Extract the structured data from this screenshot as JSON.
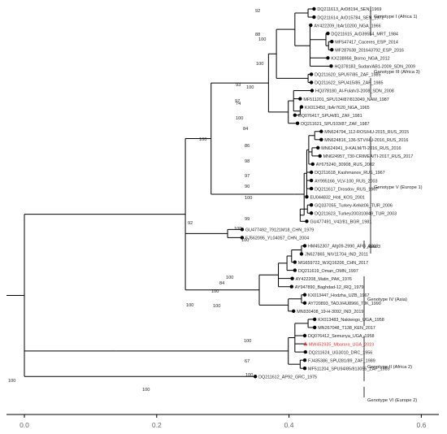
{
  "tips": [
    {
      "label": "DQ211613_ArD8194_SEN_1969",
      "highlight": false
    },
    {
      "label": "DQ211614_ArD15784_SEN_1972",
      "highlight": false
    },
    {
      "label": "AY422209_IbAr10200_NGA_1966",
      "highlight": false
    },
    {
      "label": "DQ211615_ArD39554_MRT_1984",
      "highlight": false
    },
    {
      "label": "MF547417_Caceres_ESP_2014",
      "highlight": false
    },
    {
      "label": "MF287638_201643792_ESP_2016",
      "highlight": false
    },
    {
      "label": "KX238956_Borno_NGA_2012",
      "highlight": false
    },
    {
      "label": "HQ378183_Sudan/AB1-2009_SDN_2009",
      "highlight": false
    },
    {
      "label": "DQ211620_SPU97/85_ZAF_1985",
      "highlight": false
    },
    {
      "label": "DQ211622_SPU415/85_ZAF_1985",
      "highlight": false
    },
    {
      "label": "HQ378180_Al-Fulah/3-2008_SDN_2008",
      "highlight": false
    },
    {
      "label": "MF511201_SPU134/87/813049_NAM_1987",
      "highlight": false
    },
    {
      "label": "KX013450_IbAr7620_NGA_1965",
      "highlight": false
    },
    {
      "label": "DQ076417_SPU4/81_ZAF_1981",
      "highlight": false
    },
    {
      "label": "DQ211621_SPU103/87_ZAF_1987",
      "highlight": false
    },
    {
      "label": "MN624794_112-ROS/HU-2015_RUS_2015",
      "highlight": false
    },
    {
      "label": "MN624816_136-STV/HU-2016_RUS_2016",
      "highlight": false
    },
    {
      "label": "MN624941_9-KALM/TI-2016_RUS_2016",
      "highlight": false
    },
    {
      "label": "MN624957_730-CRIMEA/TI-2017_RUS_2017",
      "highlight": false
    },
    {
      "label": "AY675240_30908_RUS_2002",
      "highlight": false
    },
    {
      "label": "DQ211618_Kashmanov_RUS_1967",
      "highlight": false
    },
    {
      "label": "AY995166_VLV-100_RUS_2003",
      "highlight": false
    },
    {
      "label": "DQ211617_Drosdov_RUS_1967",
      "highlight": false
    },
    {
      "label": "EU044832_Hoti_KOS_2001",
      "highlight": false
    },
    {
      "label": "GQ337055_Turkey-Kelkit06_TUR_2006",
      "highlight": false
    },
    {
      "label": "DQ211623_Turkey200310849_TUR_2003",
      "highlight": false
    },
    {
      "label": "GU477491_V42/81_BGR_1981",
      "highlight": false
    },
    {
      "label": "GU477492_79121M18_CHN_1979",
      "highlight": false
    },
    {
      "label": "FJ562095_YL04057_CHN_2004",
      "highlight": false
    },
    {
      "label": "HM452307_Afg09-2990_AFG_2009",
      "highlight": false
    },
    {
      "label": "JN627865_NIV11704_IND_2011",
      "highlight": false
    },
    {
      "label": "MG659722_WJQ16206_CHN_2017",
      "highlight": false
    },
    {
      "label": "DQ211619_Oman_OMN_1997",
      "highlight": false
    },
    {
      "label": "AY422208_Matin_PAK_1976",
      "highlight": false
    },
    {
      "label": "AY947890_Baghdad-12_IRQ_1979",
      "highlight": false
    },
    {
      "label": "KX013447_Hodzha_UZB_1967",
      "highlight": false
    },
    {
      "label": "AY720893_TADJ/HU8966_TJK_1990",
      "highlight": false
    },
    {
      "label": "MN930408_19-H-3092_IND_2019",
      "highlight": false
    },
    {
      "label": "KX013483_Nakiwogo_UGA_1958",
      "highlight": false
    },
    {
      "label": "MN267048_T138_KEN_2017",
      "highlight": false
    },
    {
      "label": "DQ076412_Semunya_UGA_1958",
      "highlight": false
    },
    {
      "label": "MW452935_Mbarara_UGA_2019",
      "highlight": true
    },
    {
      "label": "DQ211624_UG3010_DRC_1956",
      "highlight": false
    },
    {
      "label": "FJ435386_SPU281/89_ZAF_1989",
      "highlight": false
    },
    {
      "label": "MF511204_SPU94/85/813055_ZAF_1985",
      "highlight": false
    },
    {
      "label": "DQ211612_AP92_GRC_1975",
      "highlight": false
    }
  ],
  "nodes": [
    {
      "id": "n92",
      "support": "92",
      "x": 0.43,
      "children": [
        "t0",
        "t1"
      ]
    },
    {
      "id": "n88",
      "support": "88",
      "x": 0.457,
      "children": [
        "t3",
        "t4"
      ]
    },
    {
      "id": "n100b",
      "support": "100",
      "x": 0.461,
      "children": [
        "t4",
        "t5"
      ]
    },
    {
      "id": "n100a",
      "support": "100",
      "x": 0.433,
      "children": [
        "t2",
        "t3",
        "t6",
        "t7"
      ]
    },
    {
      "id": "n100c",
      "support": "100",
      "x": 0.43,
      "children": [
        "t8",
        "t9"
      ]
    },
    {
      "id": "n93",
      "support": "93",
      "x": 0.382,
      "children": [
        "t0",
        "t9"
      ]
    },
    {
      "id": "n74",
      "support": "74",
      "x": 0.418,
      "children": [
        "t12",
        "t13"
      ]
    },
    {
      "id": "n97",
      "support": "97",
      "x": 0.408,
      "children": [
        "t11",
        "t12"
      ]
    },
    {
      "id": "n100d",
      "support": "100",
      "x": 0.37,
      "children": [
        "t0",
        "t14"
      ]
    },
    {
      "id": "n84",
      "support": "84",
      "x": 0.44,
      "children": [
        "t15",
        "t16"
      ]
    },
    {
      "id": "n86",
      "support": "86",
      "x": 0.436,
      "children": [
        "t16",
        "t18"
      ]
    },
    {
      "id": "n98",
      "support": "98",
      "x": 0.437,
      "children": [
        "t19"
      ]
    },
    {
      "id": "n97b",
      "support": "97",
      "x": 0.431,
      "children": [
        "t15",
        "t20"
      ]
    },
    {
      "id": "n90",
      "support": "90",
      "x": 0.428,
      "children": [
        "t20",
        "t21"
      ]
    },
    {
      "id": "n100e",
      "support": "100",
      "x": 0.428,
      "children": [
        "t20",
        "t23"
      ]
    },
    {
      "id": "n99",
      "support": "99",
      "x": 0.429,
      "children": [
        "t24",
        "t25"
      ]
    },
    {
      "id": "n100f",
      "support": "100",
      "x": 0.418,
      "children": [
        "t24",
        "t26"
      ]
    },
    {
      "id": "n100g",
      "support": "100",
      "x": 0.283,
      "children": [
        "t15",
        "t26"
      ]
    },
    {
      "id": "n100h",
      "support": "100",
      "x": 0.42,
      "children": [
        "t29",
        "t30"
      ]
    },
    {
      "id": "n100i",
      "support": "100",
      "x": 0.405,
      "children": [
        "t29",
        "t31"
      ]
    },
    {
      "id": "n84b",
      "support": "84",
      "x": 0.398,
      "children": [
        "t29",
        "t32"
      ]
    },
    {
      "id": "n100j",
      "support": "100",
      "x": 0.385,
      "children": [
        "t29",
        "t34"
      ]
    },
    {
      "id": "n100k",
      "support": "100",
      "x": 0.42,
      "children": [
        "t36",
        "t37"
      ]
    },
    {
      "id": "n100l",
      "support": "100",
      "x": 0.356,
      "children": [
        "t29",
        "t37"
      ]
    },
    {
      "id": "n92b",
      "support": "92",
      "x": 0.244,
      "children": [
        "t0",
        "t37"
      ]
    },
    {
      "id": "n100m",
      "support": "100",
      "x": 0.43,
      "children": [
        "t38",
        "t39"
      ]
    },
    {
      "id": "n67",
      "support": "67",
      "x": 0.41,
      "children": [
        "t38",
        "t42"
      ]
    },
    {
      "id": "n100n",
      "support": "100",
      "x": 0.4,
      "children": [
        "t38",
        "t44"
      ]
    },
    {
      "id": "n100o",
      "support": "100",
      "x": 0.14,
      "children": [
        "t38",
        "t44"
      ]
    },
    {
      "id": "n100p",
      "support": "100",
      "x": 0.0,
      "children": [
        "t0",
        "t45"
      ]
    }
  ],
  "clades": [
    {
      "label": "Genotype I (Africa 1)"
    },
    {
      "label": "Genotype III (Africa 3)"
    },
    {
      "label": "Genotype V (Europe 1)"
    },
    {
      "label": "Asia 3"
    },
    {
      "label": "Genotype IV (Asia)"
    },
    {
      "label": "Genotype II (Africa 2)"
    },
    {
      "label": "Genotype VI (Europe 2)"
    }
  ],
  "axis": {
    "ticks": [
      {
        "value": 0.0,
        "label": "0.0"
      },
      {
        "value": 0.2,
        "label": "0.2"
      },
      {
        "value": 0.4,
        "label": "0.4"
      },
      {
        "value": 0.6,
        "label": "0.6"
      }
    ],
    "min": -0.03,
    "max": 0.65
  },
  "colors": {
    "line": "#000000",
    "highlight": "#e8322b",
    "text": "#222222"
  }
}
